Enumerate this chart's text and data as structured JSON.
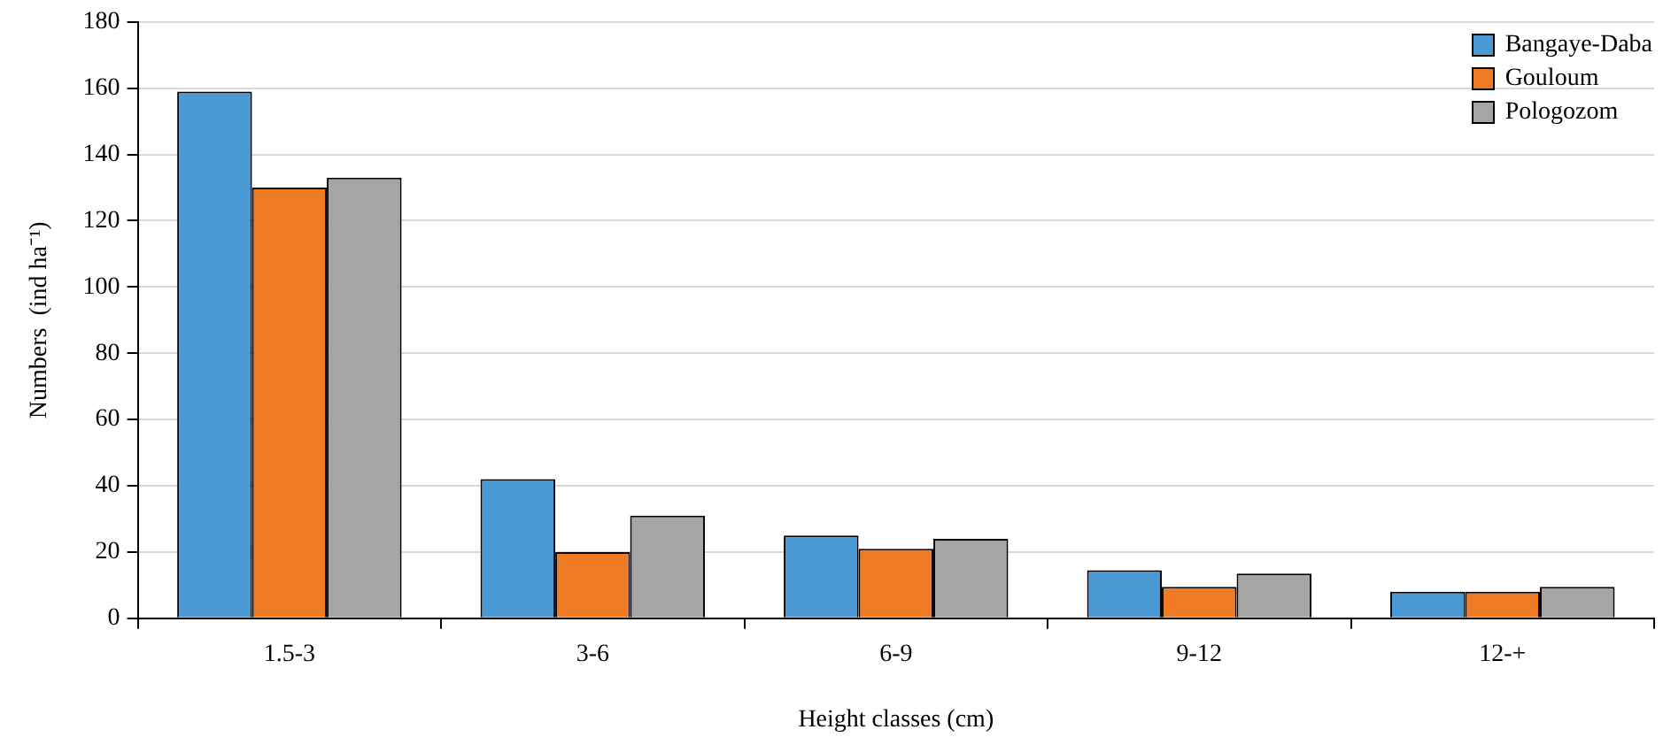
{
  "chart_data": {
    "type": "bar",
    "xlabel": "Height classes (cm)",
    "ylabel": "Numbers  (ind ha⁻¹)",
    "categories": [
      "1.5-3",
      "3-6",
      "6-9",
      "9-12",
      "12-+"
    ],
    "series": [
      {
        "name": "Bangaye-Daba",
        "color": "#4a98d4",
        "values": [
          159,
          42,
          25,
          14.5,
          8
        ]
      },
      {
        "name": "Gouloum",
        "color": "#ee7a24",
        "values": [
          130,
          20,
          21,
          9.5,
          8
        ]
      },
      {
        "name": "Pologozom",
        "color": "#a5a5a5",
        "values": [
          133,
          31,
          24,
          13.5,
          9.5
        ]
      }
    ],
    "ylim": [
      0,
      180
    ],
    "yticks": [
      0,
      20,
      40,
      60,
      80,
      100,
      120,
      140,
      160,
      180
    ],
    "grid": "y",
    "legend": "top right"
  }
}
